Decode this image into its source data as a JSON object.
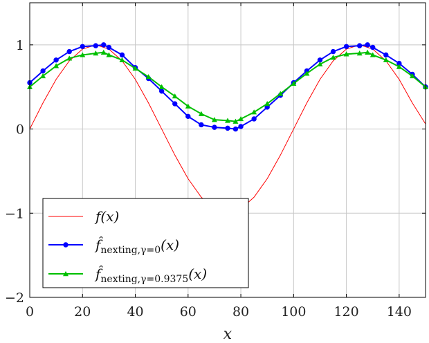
{
  "chart_data": {
    "type": "line",
    "xlabel": "x",
    "ylabel": "",
    "xlim": [
      0,
      150
    ],
    "ylim": [
      -2,
      1.5
    ],
    "xticks": [
      0,
      20,
      40,
      60,
      80,
      100,
      120,
      140
    ],
    "yticks": [
      -2,
      -1,
      0,
      1
    ],
    "ytick_labels": [
      "−2",
      "−1",
      "0",
      "1"
    ],
    "grid": true,
    "legend_position": "bottom-left",
    "series": [
      {
        "name": "f(x)",
        "color": "#ff0000",
        "marker": "none",
        "x": [
          0,
          5,
          10,
          15,
          20,
          25,
          30,
          35,
          40,
          45,
          50,
          55,
          60,
          65,
          70,
          75,
          80,
          85,
          90,
          95,
          100,
          105,
          110,
          115,
          120,
          125,
          130,
          135,
          140,
          145,
          150
        ],
        "y": [
          0,
          0.31,
          0.59,
          0.81,
          0.95,
          1.0,
          0.95,
          0.81,
          0.59,
          0.31,
          0,
          -0.31,
          -0.59,
          -0.81,
          -0.95,
          -1.0,
          -0.95,
          -0.81,
          -0.59,
          -0.31,
          0,
          0.31,
          0.59,
          0.81,
          0.95,
          1.0,
          0.95,
          0.81,
          0.59,
          0.31,
          0.06
        ]
      },
      {
        "name": "f̂ nexting, γ=0 (x)",
        "legend": {
          "base": "f̂",
          "sub": "nexting,γ=0",
          "arg": "(x)"
        },
        "color": "#0000ff",
        "marker": "circle",
        "x": [
          0,
          5,
          10,
          15,
          20,
          25,
          28,
          30,
          35,
          40,
          45,
          50,
          55,
          60,
          65,
          70,
          75,
          78,
          80,
          85,
          90,
          95,
          100,
          105,
          110,
          115,
          120,
          125,
          128,
          130,
          135,
          140,
          145,
          150
        ],
        "y": [
          0.55,
          0.69,
          0.82,
          0.92,
          0.98,
          0.99,
          1.0,
          0.97,
          0.88,
          0.73,
          0.6,
          0.45,
          0.3,
          0.15,
          0.05,
          0.02,
          0.01,
          0.0,
          0.03,
          0.12,
          0.26,
          0.4,
          0.55,
          0.69,
          0.82,
          0.92,
          0.98,
          0.99,
          1.0,
          0.97,
          0.88,
          0.78,
          0.65,
          0.5
        ]
      },
      {
        "name": "f̂ nexting, γ=0.9375 (x)",
        "legend": {
          "base": "f̂",
          "sub": "nexting,γ=0.9375",
          "arg": "(x)"
        },
        "color": "#00bf00",
        "marker": "triangle",
        "x": [
          0,
          5,
          10,
          15,
          20,
          25,
          28,
          30,
          35,
          40,
          45,
          50,
          55,
          60,
          65,
          70,
          75,
          78,
          80,
          85,
          90,
          95,
          100,
          105,
          110,
          115,
          120,
          125,
          128,
          130,
          135,
          140,
          145,
          150
        ],
        "y": [
          0.5,
          0.63,
          0.75,
          0.84,
          0.88,
          0.9,
          0.91,
          0.88,
          0.82,
          0.72,
          0.62,
          0.5,
          0.39,
          0.27,
          0.18,
          0.11,
          0.1,
          0.09,
          0.12,
          0.2,
          0.3,
          0.42,
          0.54,
          0.66,
          0.77,
          0.85,
          0.89,
          0.9,
          0.91,
          0.88,
          0.82,
          0.74,
          0.63,
          0.5
        ]
      }
    ]
  }
}
